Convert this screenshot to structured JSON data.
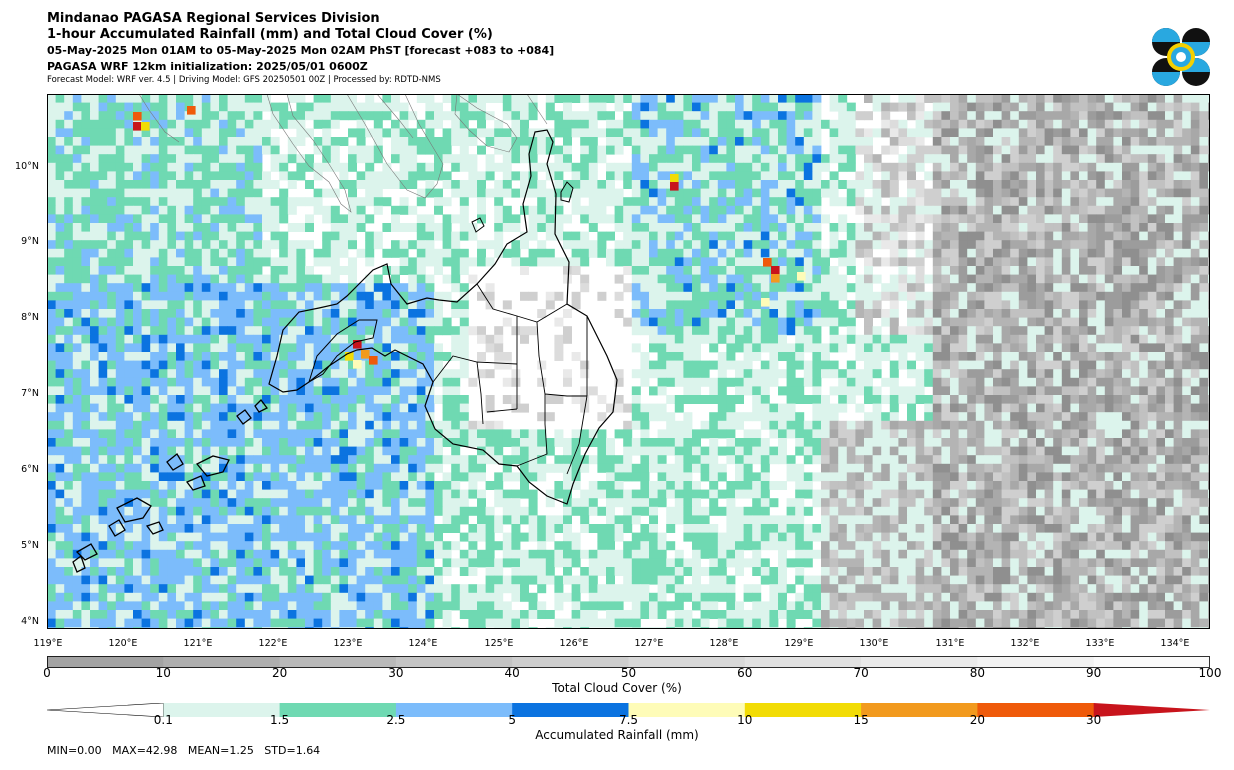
{
  "header": {
    "line1": "Mindanao PAGASA Regional Services Division",
    "line2": "1-hour Accumulated Rainfall (mm) and Total Cloud Cover (%)",
    "line3": "05-May-2025 Mon 01AM to 05-May-2025 Mon 02AM PhST [forecast +083 to +084]",
    "line4": "PAGASA WRF 12km initialization: 2025/05/01 0600Z",
    "line5": "Forecast Model: WRF ver. 4.5 | Driving Model: GFS 20250501 00Z | Processed by: RDTD-NMS"
  },
  "logo": {
    "icon": "pagasa-logo-icon",
    "colors": {
      "dark": "#111111",
      "sky": "#29a8e0",
      "yellow": "#f5d000"
    }
  },
  "map": {
    "lat_labels": [
      "10°N",
      "9°N",
      "8°N",
      "7°N",
      "6°N",
      "5°N",
      "4°N"
    ],
    "lon_labels": [
      "119°E",
      "120°E",
      "121°E",
      "122°E",
      "123°E",
      "124°E",
      "125°E",
      "126°E",
      "127°E",
      "128°E",
      "129°E",
      "130°E",
      "131°E",
      "132°E",
      "133°E",
      "134°E"
    ],
    "colors": {
      "rain_01": "#dcf4ec",
      "rain_15": "#6fd9b2",
      "rain_25": "#7cbcfb",
      "rain_5": "#0b73e0",
      "rain_75": "#fefcb8",
      "rain_10": "#f2dc05",
      "rain_15b": "#f29a1e",
      "rain_20": "#ef5a0a",
      "rain_30": "#c8141c"
    }
  },
  "cloud_cover_bar": {
    "title": "Total Cloud Cover (%)",
    "ticks": [
      "0",
      "10",
      "20",
      "30",
      "40",
      "50",
      "60",
      "70",
      "80",
      "90",
      "100"
    ],
    "colors": [
      "#a3a3a3",
      "#aeaeae",
      "#b9b9b9",
      "#c4c4c4",
      "#cecece",
      "#d8d8d8",
      "#e1e1e1",
      "#eaeaea",
      "#f2f2f2",
      "#fafafa"
    ]
  },
  "rain_bar": {
    "title": "Accumulated Rainfall (mm)",
    "ticks": [
      "0.1",
      "1.5",
      "2.5",
      "5",
      "7.5",
      "10",
      "15",
      "20",
      "30"
    ],
    "colors": [
      "#dcf4ec",
      "#6fd9b2",
      "#7cbcfb",
      "#0b73e0",
      "#fefcb8",
      "#f2dc05",
      "#f29a1e",
      "#ef5a0a",
      "#c8141c"
    ]
  },
  "stats": {
    "text": "MIN=0.00   MAX=42.98   MEAN=1.25   STD=1.64"
  }
}
